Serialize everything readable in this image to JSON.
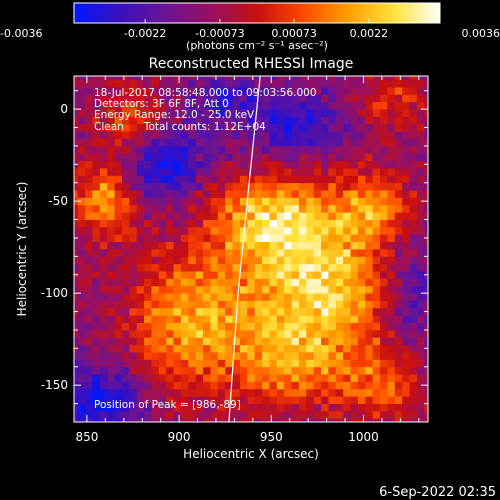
{
  "chart_data": {
    "type": "heatmap",
    "title": "Reconstructed RHESSI Image",
    "xlabel": "Heliocentric X (arcsec)",
    "ylabel": "Heliocentric Y (arcsec)",
    "xlim": [
      843,
      1035
    ],
    "ylim": [
      -170,
      18
    ],
    "x_ticks": [
      850,
      900,
      950,
      1000
    ],
    "y_ticks": [
      0,
      -50,
      -100,
      -150
    ],
    "colorbar": {
      "range": [
        -0.0036,
        0.0036
      ],
      "tick_values": [
        -0.0036,
        -0.0022,
        -0.00073,
        0.00073,
        0.0022,
        0.0036
      ],
      "tick_labels": [
        "-0.0036",
        "-0.0022",
        "-0.00073",
        "0.00073",
        "0.0022",
        "0.0036"
      ],
      "units_label": "(photons cm⁻² s⁻¹ asec⁻²)",
      "colors": [
        "#0018ff",
        "#3a10c0",
        "#6a1494",
        "#981060",
        "#c81010",
        "#ff4800",
        "#ffa000",
        "#ffe23c",
        "#ffffff"
      ]
    },
    "annotations": {
      "time": "18-Jul-2017 08:58:48.000 to 09:03:56.000",
      "detectors": "Detectors: 3F 6F 8F, Att 0",
      "energy": "Energy Range: 12.0 - 25.0 keV",
      "method": "Clean      Total counts: 1.12E+04",
      "peak": "Position of Peak = [986,-89]"
    },
    "peak": [
      986,
      -89
    ],
    "limb_curve": [
      [
        944,
        18
      ],
      [
        938,
        -40
      ],
      [
        932,
        -100
      ],
      [
        927,
        -170
      ]
    ],
    "grid_step": 4,
    "sources": [
      {
        "x": 978,
        "y": -96,
        "amp": 0.0038,
        "sx": 26,
        "sy": 32
      },
      {
        "x": 910,
        "y": -115,
        "amp": 0.0031,
        "sx": 26,
        "sy": 26
      },
      {
        "x": 946,
        "y": -60,
        "amp": 0.003,
        "sx": 22,
        "sy": 16
      },
      {
        "x": 860,
        "y": -50,
        "amp": 0.003,
        "sx": 12,
        "sy": 14
      },
      {
        "x": 1006,
        "y": -52,
        "amp": 0.0022,
        "sx": 14,
        "sy": 12
      },
      {
        "x": 875,
        "y": -8,
        "amp": 0.002,
        "sx": 14,
        "sy": 14
      },
      {
        "x": 1010,
        "y": -150,
        "amp": 0.0018,
        "sx": 18,
        "sy": 14
      },
      {
        "x": 1015,
        "y": 5,
        "amp": 0.0015,
        "sx": 14,
        "sy": 12
      },
      {
        "x": 958,
        "y": -140,
        "amp": 0.0018,
        "sx": 16,
        "sy": 14
      }
    ],
    "negative_regions": [
      {
        "x": 890,
        "y": -28,
        "amp": 0.0026,
        "sx": 16,
        "sy": 14
      },
      {
        "x": 965,
        "y": -8,
        "amp": 0.002,
        "sx": 18,
        "sy": 12
      },
      {
        "x": 855,
        "y": -158,
        "amp": 0.0022,
        "sx": 18,
        "sy": 14
      },
      {
        "x": 925,
        "y": 5,
        "amp": 0.0014,
        "sx": 14,
        "sy": 10
      },
      {
        "x": 1025,
        "y": -100,
        "amp": 0.0015,
        "sx": 10,
        "sy": 22
      }
    ]
  },
  "footer": {
    "timestamp": "6-Sep-2022 02:35"
  }
}
